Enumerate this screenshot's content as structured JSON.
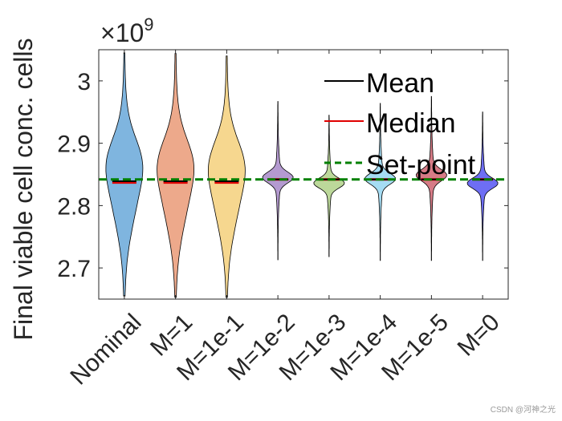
{
  "chart_data": {
    "type": "violin",
    "ylabel": "Final viable cell conc. cells",
    "exponent_label": "×10",
    "exponent_power": "9",
    "ylim": [
      2.65,
      3.05
    ],
    "yticks": [
      2.7,
      2.8,
      2.9,
      3.0
    ],
    "ytick_labels": [
      "2.7",
      "2.8",
      "2.9",
      "3"
    ],
    "setpoint": 2.842,
    "legend": {
      "mean": "Mean",
      "median": "Median",
      "setpoint": "Set-point",
      "position": "top-right"
    },
    "categories": [
      "Nominal",
      "M=1",
      "M=1e-1",
      "M=1e-2",
      "M=1e-3",
      "M=1e-4",
      "M=1e-5",
      "M=0"
    ],
    "colors": [
      "#7fb5df",
      "#eda98b",
      "#f6d78f",
      "#b49ad0",
      "#bcd89a",
      "#a5dcf3",
      "#d67b86",
      "#6e6ef4"
    ],
    "series": [
      {
        "name": "Nominal",
        "min": 2.655,
        "max": 3.045,
        "mean": 2.839,
        "median": 2.837,
        "shape": "wide"
      },
      {
        "name": "M=1",
        "min": 2.653,
        "max": 3.044,
        "mean": 2.839,
        "median": 2.837,
        "shape": "wide"
      },
      {
        "name": "M=1e-1",
        "min": 2.653,
        "max": 3.04,
        "mean": 2.839,
        "median": 2.837,
        "shape": "wide"
      },
      {
        "name": "M=1e-2",
        "min": 2.713,
        "max": 2.967,
        "mean": 2.842,
        "median": 2.842,
        "shape": "narrow"
      },
      {
        "name": "M=1e-3",
        "min": 2.718,
        "max": 2.945,
        "mean": 2.842,
        "median": 2.842,
        "shape": "narrow"
      },
      {
        "name": "M=1e-4",
        "min": 2.712,
        "max": 2.964,
        "mean": 2.842,
        "median": 2.842,
        "shape": "narrow"
      },
      {
        "name": "M=1e-5",
        "min": 2.712,
        "max": 2.975,
        "mean": 2.842,
        "median": 2.842,
        "shape": "narrow"
      },
      {
        "name": "M=0",
        "min": 2.712,
        "max": 2.95,
        "mean": 2.842,
        "median": 2.842,
        "shape": "narrow"
      }
    ]
  },
  "watermark": "CSDN @河神之光"
}
